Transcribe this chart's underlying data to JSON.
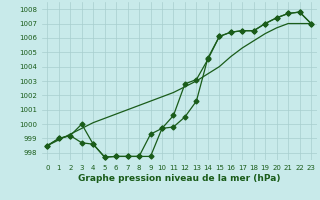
{
  "title": "Graphe pression niveau de la mer (hPa)",
  "x_labels": [
    "0",
    "1",
    "2",
    "3",
    "4",
    "5",
    "6",
    "7",
    "8",
    "9",
    "10",
    "11",
    "12",
    "13",
    "14",
    "15",
    "16",
    "17",
    "18",
    "19",
    "20",
    "21",
    "22",
    "23"
  ],
  "ylim": [
    997.5,
    1008.5
  ],
  "xlim": [
    -0.5,
    23.5
  ],
  "yticks": [
    998,
    999,
    1000,
    1001,
    1002,
    1003,
    1004,
    1005,
    1006,
    1007,
    1008
  ],
  "line_straight": [
    998.5,
    998.9,
    999.3,
    999.7,
    1000.1,
    1000.4,
    1000.7,
    1001.0,
    1001.3,
    1001.6,
    1001.9,
    1002.2,
    1002.6,
    1003.0,
    1003.5,
    1004.0,
    1004.7,
    1005.3,
    1005.8,
    1006.3,
    1006.7,
    1007.0,
    1007.0,
    1007.0
  ],
  "line_zigzag": [
    998.5,
    999.0,
    999.2,
    1000.0,
    998.6,
    997.7,
    997.75,
    997.75,
    997.75,
    997.75,
    999.7,
    999.8,
    1000.5,
    1001.6,
    1004.6,
    1006.1,
    1006.4,
    1006.5,
    1006.5,
    1007.0,
    1007.4,
    1007.7,
    1007.8,
    1007.0
  ],
  "line_wavy": [
    998.5,
    999.0,
    999.2,
    998.7,
    998.6,
    997.7,
    997.75,
    997.75,
    997.75,
    999.3,
    999.7,
    1000.6,
    1002.8,
    1003.1,
    1004.5,
    1006.1,
    1006.4,
    1006.5,
    1006.5,
    1007.0,
    1007.4,
    1007.7,
    1007.8,
    1007.0
  ],
  "line_color": "#1a5c1a",
  "bg_color": "#c8eaea",
  "grid_color": "#a8cece",
  "title_color": "#1a5c1a",
  "marker": "D",
  "marker_size": 2.5,
  "line_width": 0.9
}
